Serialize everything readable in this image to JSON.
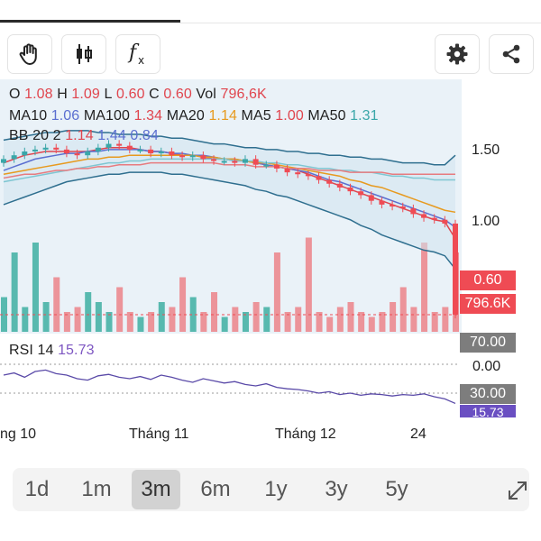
{
  "legend": {
    "o_label": "O",
    "o_value": "1.08",
    "h_label": "H",
    "h_value": "1.09",
    "l_label": "L",
    "l_value": "0.60",
    "c_label": "C",
    "c_value": "0.60",
    "vol_label": "Vol",
    "vol_value": "796,6K",
    "ma10_label": "MA10",
    "ma10_value": "1.06",
    "ma100_label": "MA100",
    "ma100_value": "1.34",
    "ma20_label": "MA20",
    "ma20_value": "1.14",
    "ma5_label": "MA5",
    "ma5_value": "1.00",
    "ma50_label": "MA50",
    "ma50_value": "1.31",
    "bb_label": "BB 20 2",
    "bb_v1": "1.14",
    "bb_v2": "1.44",
    "bb_v3": "0.84",
    "rsi_label": "RSI 14",
    "rsi_value": "15.73"
  },
  "price_axis": [
    "1.50",
    "1.00"
  ],
  "price_tag": "0.60",
  "volume_tag": "796.6K",
  "rsi_axis": {
    "upper": "70.00",
    "middle": "0.00",
    "lower": "30.00",
    "current": "15.73"
  },
  "x_axis": [
    "ng 10",
    "Tháng 11",
    "Tháng 12",
    "24"
  ],
  "ranges": [
    "1d",
    "1m",
    "3m",
    "6m",
    "1y",
    "3y",
    "5y"
  ],
  "active_range": "3m",
  "toolbar_icons": [
    "hand-icon",
    "candlestick-icon",
    "function-icon",
    "settings-icon",
    "share-icon"
  ],
  "colors": {
    "up": "#3aa7a9",
    "down": "#ef4b54",
    "bb": "#2f6f8f",
    "rsi": "#5a4aa8"
  },
  "chart_data": [
    {
      "type": "candlestick",
      "title": "",
      "ylim": [
        0.5,
        1.65
      ],
      "close": [
        1.42,
        1.44,
        1.46,
        1.47,
        1.48,
        1.47,
        1.45,
        1.44,
        1.46,
        1.48,
        1.5,
        1.49,
        1.47,
        1.47,
        1.45,
        1.46,
        1.44,
        1.43,
        1.44,
        1.42,
        1.41,
        1.41,
        1.4,
        1.42,
        1.39,
        1.39,
        1.37,
        1.35,
        1.34,
        1.33,
        1.31,
        1.29,
        1.27,
        1.25,
        1.23,
        1.2,
        1.18,
        1.17,
        1.16,
        1.13,
        1.11,
        1.1,
        1.08,
        0.6
      ],
      "series": [
        {
          "name": "MA5",
          "values": [
            1.4,
            1.42,
            1.44,
            1.45,
            1.46,
            1.46,
            1.46,
            1.46,
            1.46,
            1.47,
            1.48,
            1.48,
            1.48,
            1.47,
            1.46,
            1.46,
            1.45,
            1.44,
            1.44,
            1.43,
            1.42,
            1.42,
            1.41,
            1.41,
            1.4,
            1.39,
            1.38,
            1.37,
            1.36,
            1.34,
            1.32,
            1.3,
            1.28,
            1.26,
            1.24,
            1.22,
            1.2,
            1.18,
            1.16,
            1.14,
            1.12,
            1.1,
            1.09,
            1.0
          ]
        },
        {
          "name": "MA10",
          "values": [
            1.36,
            1.38,
            1.4,
            1.42,
            1.43,
            1.44,
            1.45,
            1.45,
            1.46,
            1.46,
            1.47,
            1.47,
            1.47,
            1.47,
            1.46,
            1.46,
            1.45,
            1.45,
            1.44,
            1.44,
            1.43,
            1.42,
            1.42,
            1.41,
            1.4,
            1.39,
            1.38,
            1.37,
            1.36,
            1.35,
            1.33,
            1.31,
            1.3,
            1.28,
            1.26,
            1.24,
            1.22,
            1.2,
            1.18,
            1.16,
            1.14,
            1.12,
            1.1,
            1.06
          ]
        },
        {
          "name": "MA20",
          "values": [
            1.34,
            1.35,
            1.36,
            1.37,
            1.38,
            1.39,
            1.4,
            1.41,
            1.42,
            1.42,
            1.43,
            1.43,
            1.44,
            1.44,
            1.44,
            1.44,
            1.44,
            1.44,
            1.44,
            1.43,
            1.43,
            1.42,
            1.42,
            1.41,
            1.4,
            1.4,
            1.39,
            1.38,
            1.37,
            1.36,
            1.35,
            1.34,
            1.33,
            1.31,
            1.3,
            1.28,
            1.27,
            1.25,
            1.23,
            1.21,
            1.19,
            1.17,
            1.15,
            1.14
          ]
        },
        {
          "name": "MA50",
          "values": [
            1.3,
            1.31,
            1.32,
            1.33,
            1.34,
            1.35,
            1.36,
            1.37,
            1.38,
            1.39,
            1.4,
            1.4,
            1.41,
            1.41,
            1.42,
            1.42,
            1.42,
            1.42,
            1.42,
            1.42,
            1.42,
            1.42,
            1.41,
            1.41,
            1.41,
            1.4,
            1.4,
            1.39,
            1.39,
            1.38,
            1.37,
            1.37,
            1.36,
            1.36,
            1.35,
            1.35,
            1.34,
            1.33,
            1.33,
            1.32,
            1.32,
            1.31,
            1.31,
            1.31
          ]
        },
        {
          "name": "MA100",
          "values": [
            1.32,
            1.33,
            1.34,
            1.34,
            1.35,
            1.36,
            1.36,
            1.37,
            1.37,
            1.38,
            1.38,
            1.39,
            1.39,
            1.39,
            1.4,
            1.4,
            1.4,
            1.4,
            1.4,
            1.4,
            1.4,
            1.39,
            1.39,
            1.39,
            1.38,
            1.38,
            1.38,
            1.37,
            1.37,
            1.37,
            1.36,
            1.36,
            1.36,
            1.35,
            1.35,
            1.35,
            1.35,
            1.34,
            1.34,
            1.34,
            1.34,
            1.34,
            1.34,
            1.34
          ]
        },
        {
          "name": "BB upper",
          "values": [
            1.52,
            1.53,
            1.54,
            1.55,
            1.56,
            1.56,
            1.57,
            1.57,
            1.57,
            1.56,
            1.56,
            1.55,
            1.55,
            1.55,
            1.54,
            1.54,
            1.53,
            1.53,
            1.52,
            1.51,
            1.5,
            1.5,
            1.49,
            1.48,
            1.48,
            1.47,
            1.47,
            1.46,
            1.46,
            1.45,
            1.45,
            1.44,
            1.44,
            1.43,
            1.43,
            1.42,
            1.42,
            1.41,
            1.4,
            1.4,
            1.4,
            1.39,
            1.39,
            1.44
          ]
        },
        {
          "name": "BB lower",
          "values": [
            1.18,
            1.2,
            1.22,
            1.24,
            1.26,
            1.28,
            1.3,
            1.31,
            1.32,
            1.33,
            1.34,
            1.34,
            1.35,
            1.35,
            1.35,
            1.35,
            1.34,
            1.34,
            1.33,
            1.32,
            1.31,
            1.3,
            1.29,
            1.28,
            1.26,
            1.25,
            1.23,
            1.22,
            1.2,
            1.18,
            1.16,
            1.14,
            1.12,
            1.1,
            1.07,
            1.05,
            1.02,
            1.0,
            0.98,
            0.96,
            0.94,
            0.93,
            0.91,
            0.84
          ]
        }
      ]
    },
    {
      "type": "bar",
      "title": "",
      "values": [
        0.35,
        0.8,
        0.25,
        0.9,
        0.3,
        0.55,
        0.2,
        0.25,
        0.4,
        0.3,
        0.2,
        0.45,
        0.2,
        0.15,
        0.2,
        0.3,
        0.25,
        0.55,
        0.35,
        0.2,
        0.4,
        0.15,
        0.25,
        0.2,
        0.3,
        0.25,
        0.8,
        0.2,
        0.25,
        0.95,
        0.2,
        0.15,
        0.25,
        0.3,
        0.2,
        0.15,
        0.2,
        0.3,
        0.45,
        0.25,
        0.9,
        0.2,
        0.25,
        0.8
      ]
    },
    {
      "type": "line",
      "title": "",
      "ylim": [
        0,
        100
      ],
      "series": [
        {
          "name": "RSI 14",
          "values": [
            55,
            58,
            52,
            60,
            62,
            57,
            55,
            50,
            48,
            54,
            56,
            52,
            50,
            53,
            49,
            55,
            52,
            48,
            45,
            50,
            47,
            44,
            46,
            42,
            40,
            43,
            38,
            36,
            35,
            33,
            30,
            32,
            28,
            30,
            27,
            29,
            28,
            26,
            28,
            27,
            29,
            25,
            22,
            15.73
          ]
        }
      ]
    }
  ]
}
